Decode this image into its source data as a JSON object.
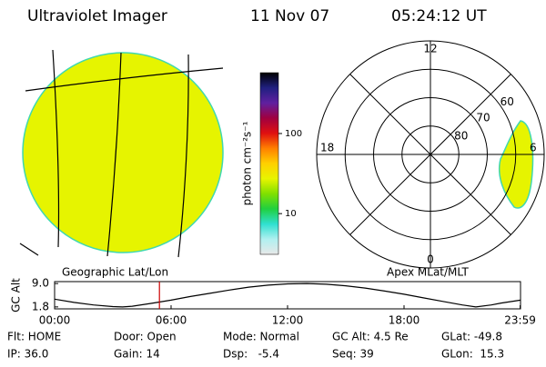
{
  "header": {
    "title": "Ultraviolet Imager",
    "date": "11 Nov 07",
    "time": "05:24:12 UT"
  },
  "panels": {
    "left_title": "Geographic Lat/Lon",
    "right_title": "Apex MLat/MLT"
  },
  "colorbar": {
    "label": "photon cm⁻²s⁻¹",
    "log": true,
    "clim": [
      3.1,
      575
    ],
    "ticks": [
      10,
      100
    ],
    "colors": [
      "#e8e8e8",
      "#b0f0f0",
      "#30e0d0",
      "#20d040",
      "#80e000",
      "#e8f400",
      "#ffd000",
      "#ff8000",
      "#e01010",
      "#a00040",
      "#6020a0",
      "#202080",
      "#000000"
    ]
  },
  "polar": {
    "mlt_labels": [
      "12",
      "18",
      "6",
      "0"
    ],
    "rings": [
      80,
      70,
      60
    ]
  },
  "chart_data": {
    "type": "line",
    "ylabel": "GC Alt",
    "x": [
      0,
      1,
      2,
      3,
      3.5,
      4,
      5,
      6,
      7,
      8,
      9,
      10,
      11,
      12,
      13,
      14,
      15,
      16,
      17,
      18,
      19,
      20,
      21,
      21.7,
      22.5,
      23,
      24
    ],
    "values": [
      4.2,
      3.2,
      2.4,
      1.9,
      1.8,
      2.0,
      2.9,
      3.9,
      5.0,
      6.0,
      7.0,
      7.9,
      8.5,
      8.9,
      9.0,
      8.8,
      8.3,
      7.6,
      6.7,
      5.7,
      4.6,
      3.5,
      2.4,
      1.8,
      2.4,
      3.0,
      3.9
    ],
    "xlim": [
      0,
      24
    ],
    "xticks": [
      {
        "value": 0,
        "label": "00:00"
      },
      {
        "value": 6,
        "label": "06:00"
      },
      {
        "value": 12,
        "label": "12:00"
      },
      {
        "value": 18,
        "label": "18:00"
      },
      {
        "value": 23.98,
        "label": "23:59"
      }
    ],
    "ylim": [
      1.2,
      9.6
    ],
    "yticks": [
      1.8,
      {
        "value": 9.0,
        "label": "9.0"
      }
    ],
    "color": "#000000",
    "marker_x": 5.4,
    "marker_color": "#cc0000"
  },
  "footer": {
    "rows": [
      [
        "Flt: HOME",
        "Door: Open",
        "Mode: Normal",
        "GC Alt: 4.5 Re",
        "GLat: -49.8"
      ],
      [
        "IP: 36.0",
        "Gain: 14",
        "Dsp:   -5.4",
        "Seq: 39",
        "GLon:  15.3"
      ]
    ]
  }
}
